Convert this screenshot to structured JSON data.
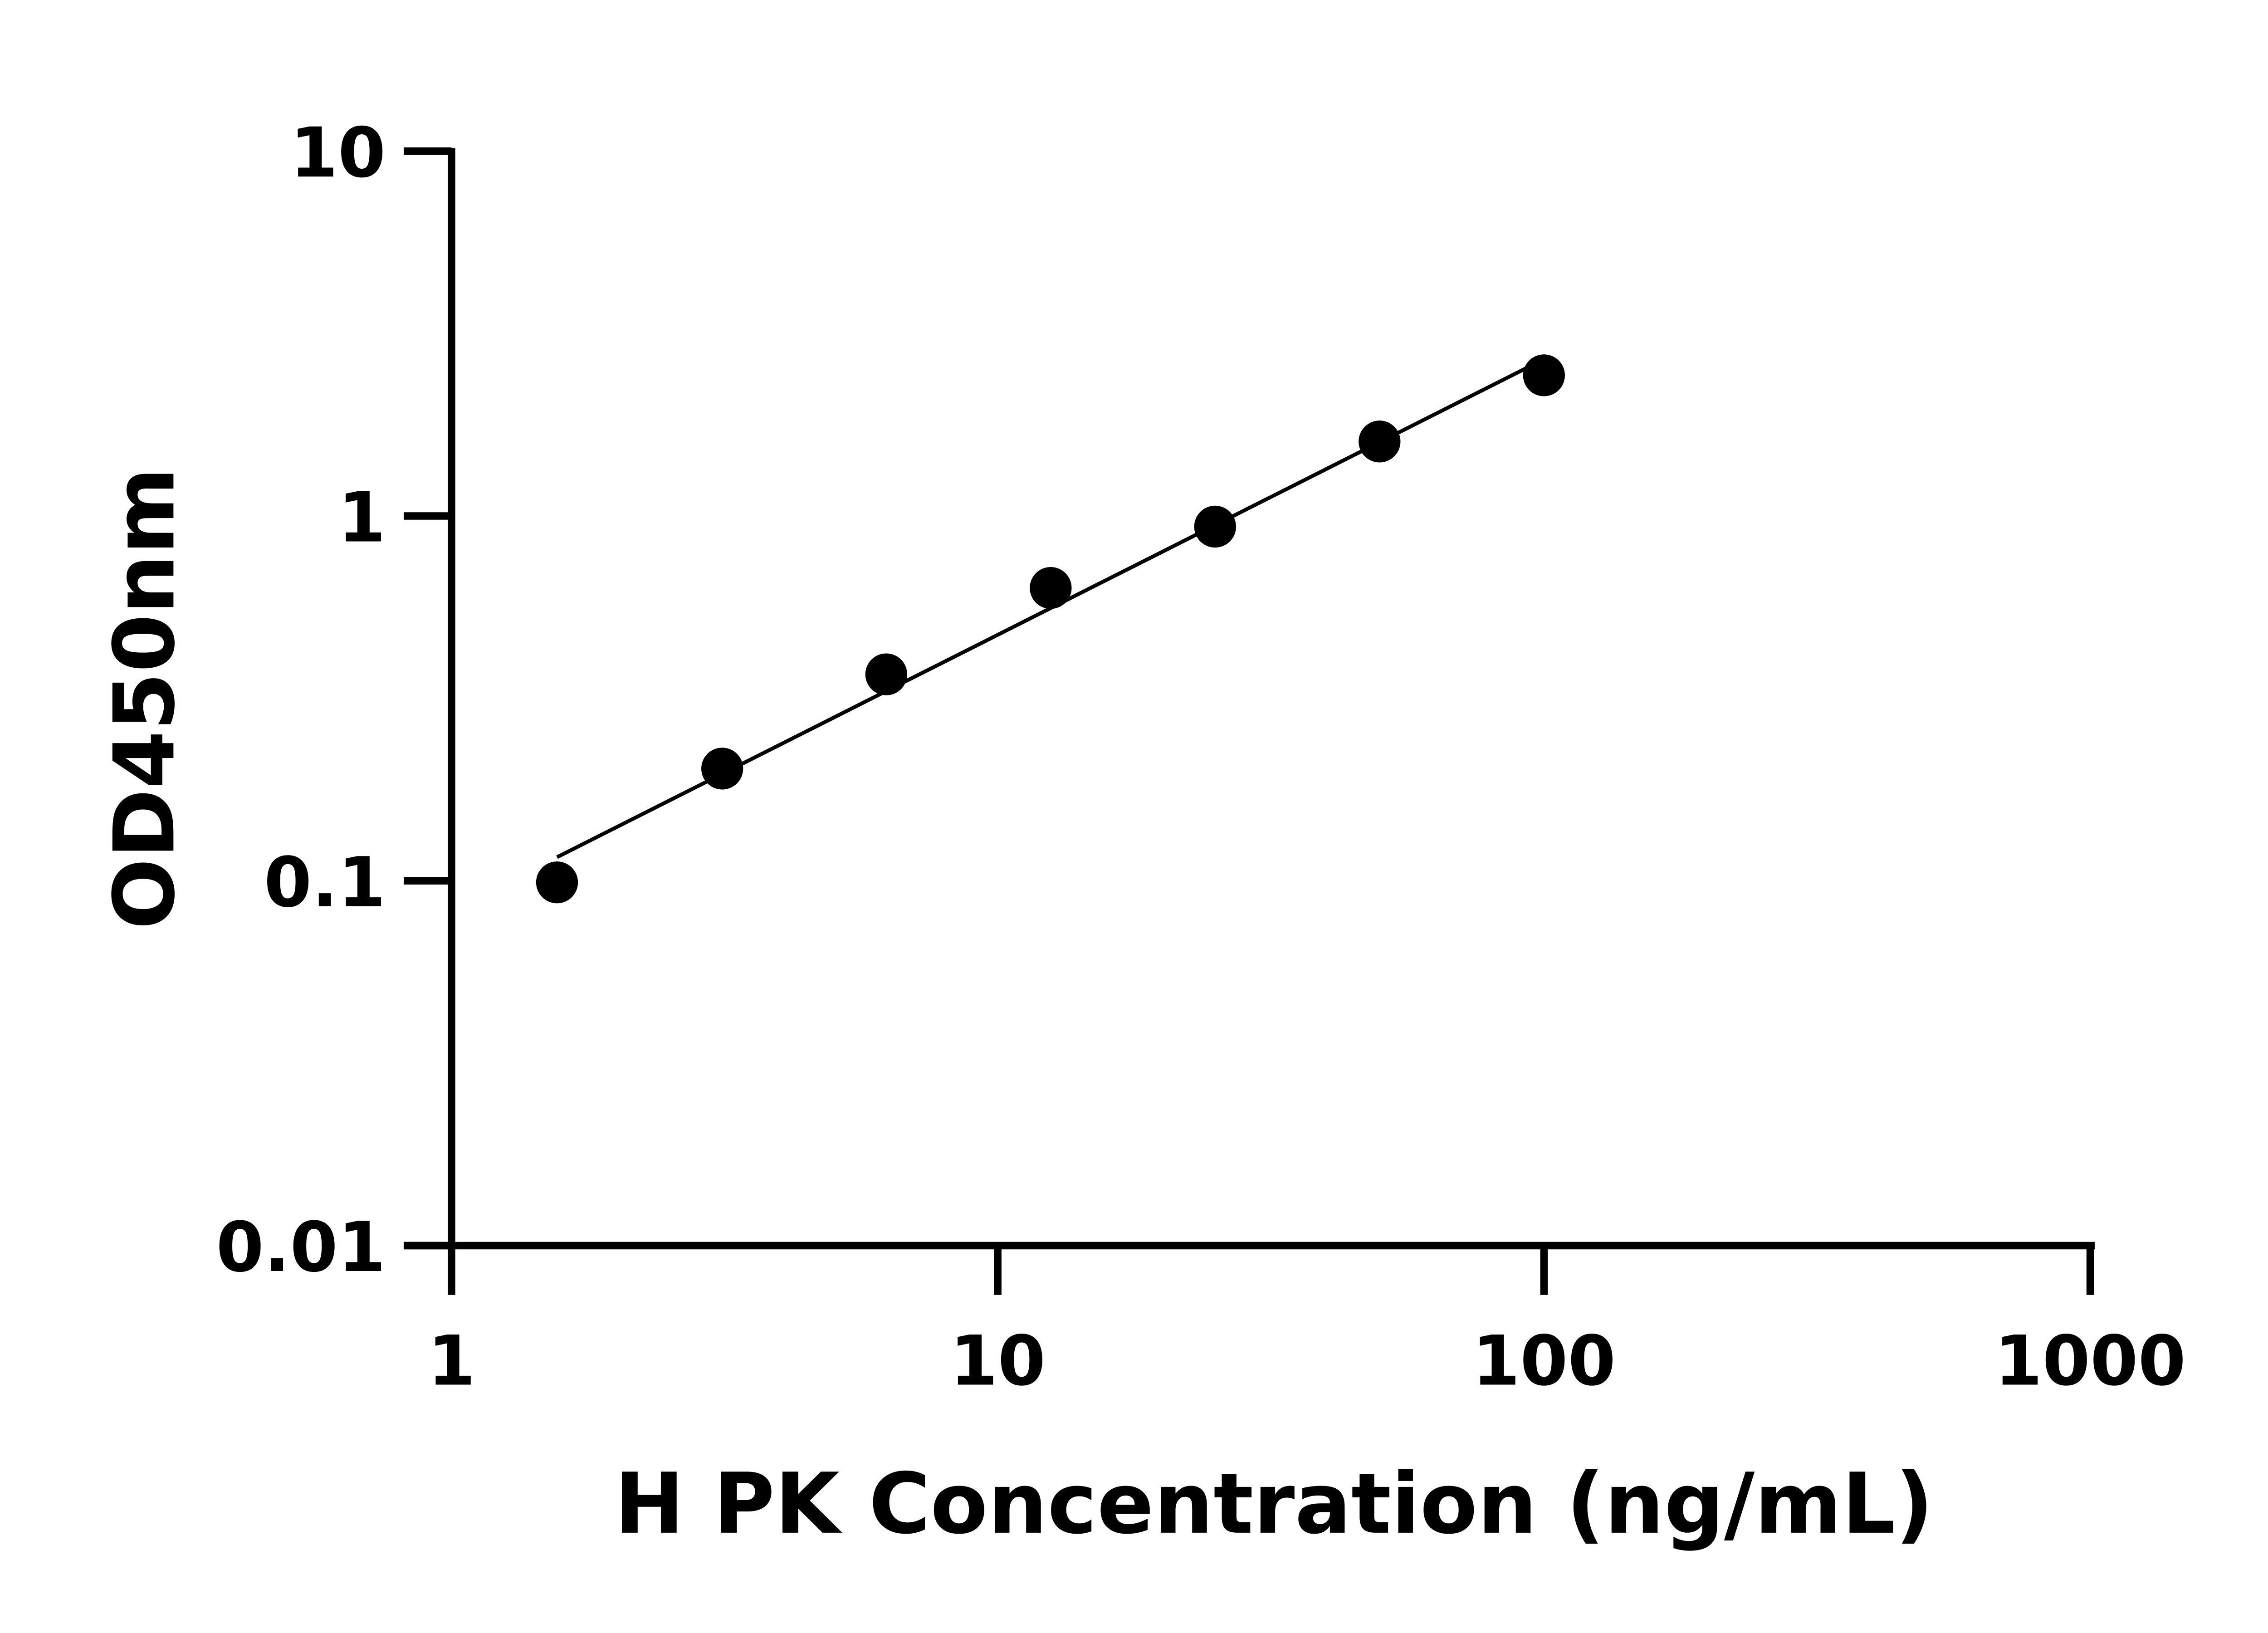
{
  "chart_data": {
    "type": "scatter",
    "title": "",
    "xlabel": "H PK Concentration (ng/mL)",
    "ylabel": "OD450nm",
    "xscale": "log",
    "yscale": "log",
    "xlim": [
      1,
      1000
    ],
    "ylim": [
      0.01,
      10
    ],
    "xticks": [
      {
        "v": 1,
        "label": "1"
      },
      {
        "v": 10,
        "label": "10"
      },
      {
        "v": 100,
        "label": "100"
      },
      {
        "v": 1000,
        "label": "1000"
      }
    ],
    "yticks": [
      {
        "v": 0.01,
        "label": "0.01"
      },
      {
        "v": 0.1,
        "label": "0.1"
      },
      {
        "v": 1,
        "label": "1"
      },
      {
        "v": 10,
        "label": "10"
      }
    ],
    "grid": false,
    "fit_line": true,
    "color": "#000000",
    "x": [
      1.56,
      3.13,
      6.25,
      12.5,
      25,
      50,
      100
    ],
    "y": [
      0.099,
      0.203,
      0.368,
      0.635,
      0.935,
      1.6,
      2.43
    ]
  }
}
